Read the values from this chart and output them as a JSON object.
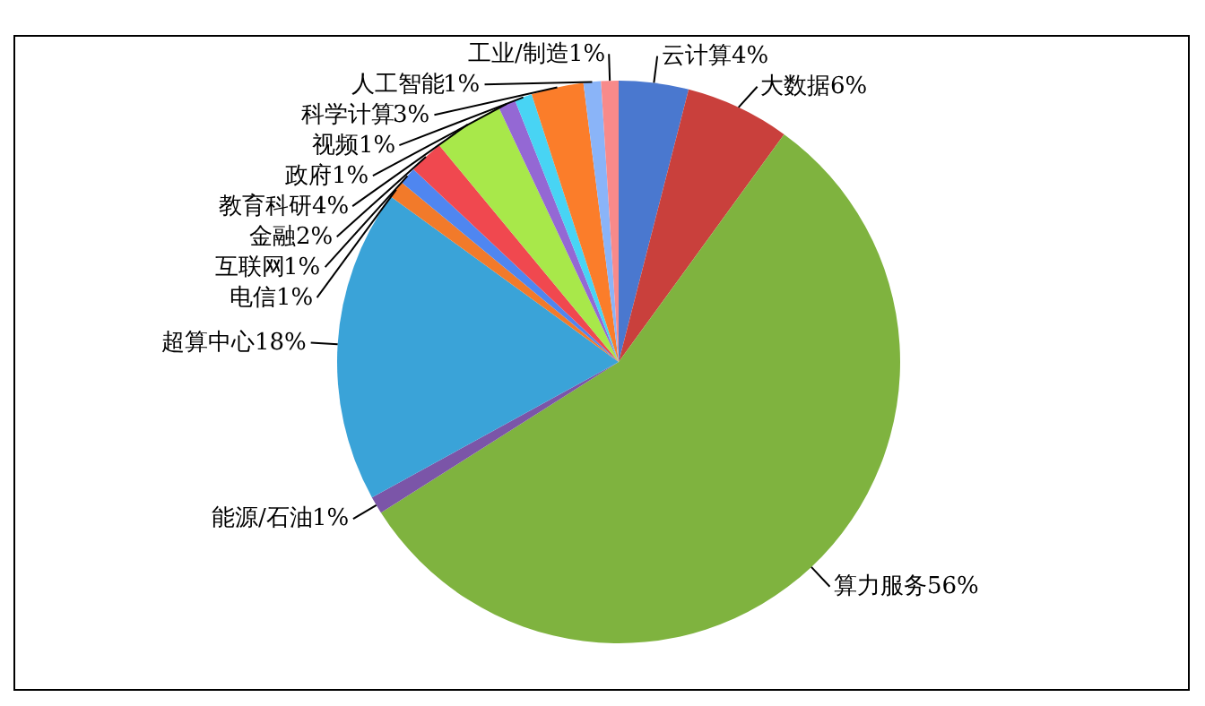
{
  "chart_data": {
    "type": "pie",
    "categories": [
      "云计算",
      "大数据",
      "算力服务",
      "能源/石油",
      "超算中心",
      "电信",
      "互联网",
      "金融",
      "教育科研",
      "政府",
      "视频",
      "科学计算",
      "人工智能",
      "工业/制造"
    ],
    "values": [
      4,
      6,
      56,
      1,
      18,
      1,
      1,
      2,
      4,
      1,
      1,
      3,
      1,
      1
    ],
    "value_labels": [
      "4%",
      "6%",
      "56%",
      "1%",
      "18%",
      "1%",
      "1%",
      "2%",
      "4%",
      "1%",
      "1%",
      "3%",
      "1%",
      "1%"
    ],
    "colors": [
      "#4a78cf",
      "#c9403c",
      "#7fb33f",
      "#7b55a8",
      "#3aa3d8",
      "#f27a2a",
      "#4f86f0",
      "#f0484f",
      "#a8e84a",
      "#9468d4",
      "#48d4f4",
      "#fb7d2a",
      "#8ab4f8",
      "#f88a8a"
    ],
    "legend": false
  }
}
